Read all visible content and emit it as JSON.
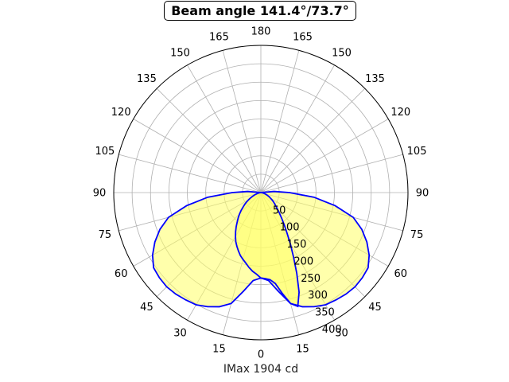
{
  "title": "Beam angle 141.4°/73.7°",
  "xlabel": "IMax 1904 cd",
  "colors": {
    "curve": "#0000ff",
    "fill": "#ffff66",
    "grid": "#b0b0b0",
    "axis": "#000000"
  },
  "chart_data": {
    "type": "polar",
    "title": "Beam angle 141.4°/73.7°",
    "xlabel": "IMax 1904 cd",
    "angle_tick_labels": [
      "0",
      "15",
      "30",
      "45",
      "60",
      "75",
      "90",
      "105",
      "120",
      "135",
      "150",
      "165",
      "180",
      "165",
      "150",
      "135",
      "120",
      "105",
      "90",
      "75",
      "60",
      "45",
      "30",
      "15"
    ],
    "radial_tick_labels": [
      "50",
      "100",
      "150",
      "200",
      "250",
      "300",
      "350",
      "400"
    ],
    "rlim": [
      0,
      400
    ],
    "grid": true,
    "series": [
      {
        "angle_deg": [
          0,
          5,
          10,
          15,
          20,
          25,
          30,
          35,
          40,
          45,
          50,
          55,
          60,
          65,
          70,
          75,
          80,
          85,
          90,
          95,
          100
        ],
        "values": [
          232,
          240,
          272,
          312,
          330,
          342,
          352,
          356,
          360,
          362,
          360,
          356,
          340,
          318,
          292,
          260,
          205,
          145,
          78,
          36,
          0
        ]
      },
      {
        "angle_deg": [
          0,
          5,
          10,
          15,
          20,
          25,
          30,
          35,
          40,
          45,
          50,
          55,
          60,
          65,
          70,
          75,
          80,
          85,
          90,
          95,
          100
        ],
        "values": [
          232,
          240,
          272,
          312,
          330,
          342,
          352,
          356,
          360,
          362,
          360,
          356,
          340,
          318,
          292,
          260,
          205,
          145,
          78,
          36,
          0
        ]
      },
      {
        "angle_deg": [
          0,
          3,
          6,
          9,
          12,
          15,
          18,
          21,
          24,
          27,
          30,
          33,
          36,
          39,
          42,
          45,
          48,
          51,
          54,
          57,
          60,
          63,
          66,
          69,
          72,
          75,
          78,
          81,
          84,
          87,
          90
        ],
        "values": [
          232,
          234,
          238,
          250,
          280,
          312,
          325,
          290,
          240,
          195,
          160,
          130,
          108,
          90,
          76,
          64,
          55,
          48,
          42,
          36,
          30,
          26,
          21,
          17,
          13,
          10,
          7,
          5,
          3,
          1,
          0
        ]
      },
      {
        "angle_deg": [
          0,
          3,
          6,
          9,
          12,
          15,
          18,
          21,
          24,
          27,
          30,
          33,
          36,
          39,
          42,
          45,
          48,
          51,
          54,
          57,
          60,
          63,
          66,
          69,
          72,
          75,
          78,
          81,
          84,
          87,
          90
        ],
        "values": [
          232,
          222,
          215,
          206,
          196,
          188,
          180,
          170,
          160,
          150,
          138,
          126,
          114,
          102,
          92,
          82,
          72,
          62,
          54,
          46,
          38,
          31,
          25,
          19,
          14,
          10,
          6,
          4,
          2,
          1,
          0
        ]
      }
    ]
  }
}
